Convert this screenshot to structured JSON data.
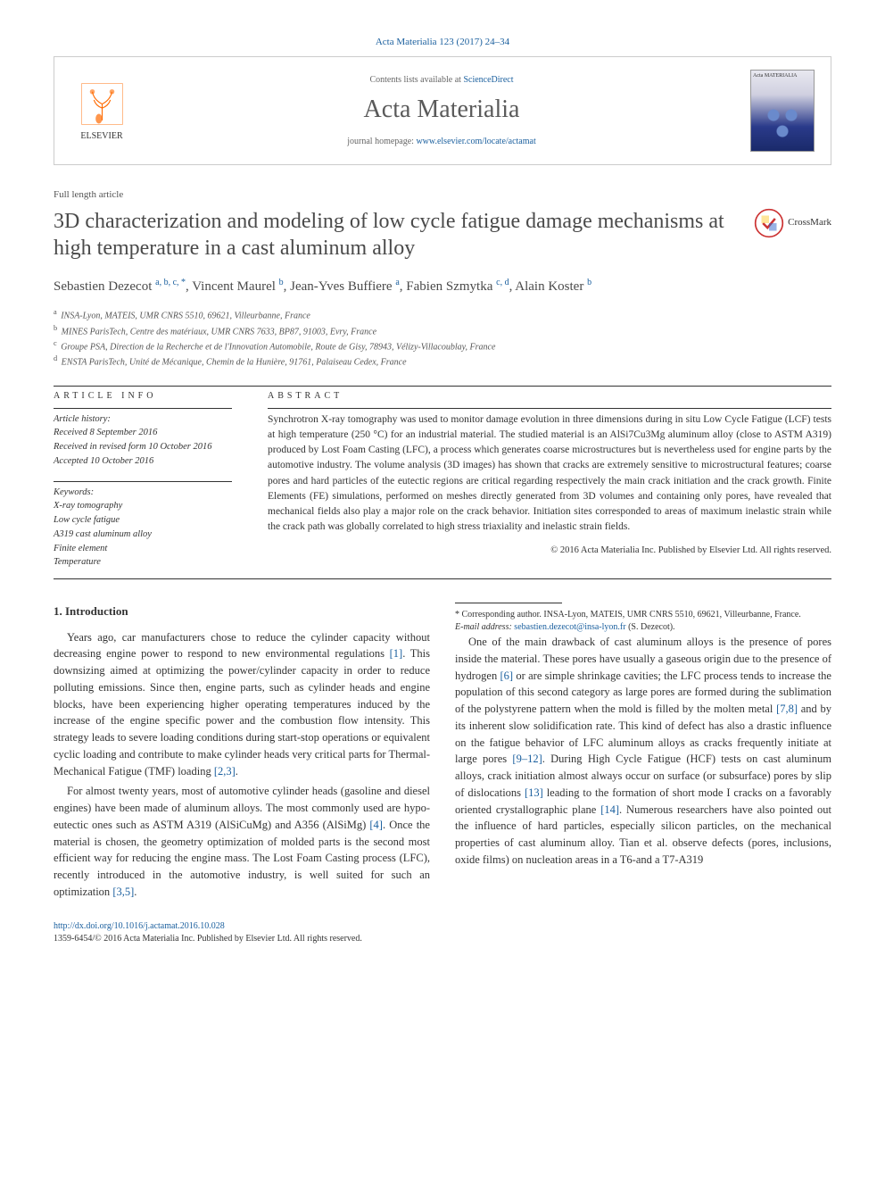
{
  "citation": "Acta Materialia 123 (2017) 24–34",
  "header": {
    "contents_prefix": "Contents lists available at ",
    "contents_link": "ScienceDirect",
    "journal": "Acta Materialia",
    "homepage_prefix": "journal homepage: ",
    "homepage_url": "www.elsevier.com/locate/actamat",
    "publisher": "ELSEVIER",
    "cover_label": "Acta MATERIALIA"
  },
  "article_type": "Full length article",
  "title": "3D characterization and modeling of low cycle fatigue damage mechanisms at high temperature in a cast aluminum alloy",
  "crossmark": "CrossMark",
  "authors_html": "Sebastien Dezecot <sup>a, b, c, *</sup>, Vincent Maurel <sup>b</sup>, Jean-Yves Buffiere <sup>a</sup>, Fabien Szmytka <sup>c, d</sup>, Alain Koster <sup>b</sup>",
  "affiliations": [
    "a INSA-Lyon, MATEIS, UMR CNRS 5510, 69621, Villeurbanne, France",
    "b MINES ParisTech, Centre des matériaux, UMR CNRS 7633, BP87, 91003, Evry, France",
    "c Groupe PSA, Direction de la Recherche et de l'Innovation Automobile, Route de Gisy, 78943, Vélizy-Villacoublay, France",
    "d ENSTA ParisTech, Unité de Mécanique, Chemin de la Hunière, 91761, Palaiseau Cedex, France"
  ],
  "section_labels": {
    "info": "ARTICLE INFO",
    "abstract": "ABSTRACT"
  },
  "history": {
    "header": "Article history:",
    "received": "Received 8 September 2016",
    "revised": "Received in revised form 10 October 2016",
    "accepted": "Accepted 10 October 2016"
  },
  "keywords": {
    "header": "Keywords:",
    "items": [
      "X-ray tomography",
      "Low cycle fatigue",
      "A319 cast aluminum alloy",
      "Finite element",
      "Temperature"
    ]
  },
  "abstract": "Synchrotron X-ray tomography was used to monitor damage evolution in three dimensions during in situ Low Cycle Fatigue (LCF) tests at high temperature (250 °C) for an industrial material. The studied material is an AlSi7Cu3Mg aluminum alloy (close to ASTM A319) produced by Lost Foam Casting (LFC), a process which generates coarse microstructures but is nevertheless used for engine parts by the automotive industry. The volume analysis (3D images) has shown that cracks are extremely sensitive to microstructural features; coarse pores and hard particles of the eutectic regions are critical regarding respectively the main crack initiation and the crack growth. Finite Elements (FE) simulations, performed on meshes directly generated from 3D volumes and containing only pores, have revealed that mechanical fields also play a major role on the crack behavior. Initiation sites corresponded to areas of maximum inelastic strain while the crack path was globally correlated to high stress triaxiality and inelastic strain fields.",
  "copyright": "© 2016 Acta Materialia Inc. Published by Elsevier Ltd. All rights reserved.",
  "body": {
    "h1": "1. Introduction",
    "p1": "Years ago, car manufacturers chose to reduce the cylinder capacity without decreasing engine power to respond to new environmental regulations [1]. This downsizing aimed at optimizing the power/cylinder capacity in order to reduce polluting emissions. Since then, engine parts, such as cylinder heads and engine blocks, have been experiencing higher operating temperatures induced by the increase of the engine specific power and the combustion flow intensity. This strategy leads to severe loading conditions during start-stop operations or equivalent cyclic loading and contribute to make cylinder heads very critical parts for Thermal-Mechanical Fatigue (TMF) loading [2,3].",
    "p2": "For almost twenty years, most of automotive cylinder heads (gasoline and diesel engines) have been made of aluminum alloys. The most commonly used are hypo-eutectic ones such as ASTM A319 (AlSiCuMg) and A356 (AlSiMg) [4]. Once the material is chosen, the geometry optimization of molded parts is the second most efficient way for reducing the engine mass. The Lost Foam Casting process (LFC), recently introduced in the automotive industry, is well suited for such an optimization [3,5].",
    "p3": "One of the main drawback of cast aluminum alloys is the presence of pores inside the material. These pores have usually a gaseous origin due to the presence of hydrogen [6] or are simple shrinkage cavities; the LFC process tends to increase the population of this second category as large pores are formed during the sublimation of the polystyrene pattern when the mold is filled by the molten metal [7,8] and by its inherent slow solidification rate. This kind of defect has also a drastic influence on the fatigue behavior of LFC aluminum alloys as cracks frequently initiate at large pores [9–12]. During High Cycle Fatigue (HCF) tests on cast aluminum alloys, crack initiation almost always occur on surface (or subsurface) pores by slip of dislocations [13] leading to the formation of short mode I cracks on a favorably oriented crystallographic plane [14]. Numerous researchers have also pointed out the influence of hard particles, especially silicon particles, on the mechanical properties of cast aluminum alloy. Tian et al. observe defects (pores, inclusions, oxide films) on nucleation areas in a T6-and a T7-A319"
  },
  "footnotes": {
    "corr": "* Corresponding author. INSA-Lyon, MATEIS, UMR CNRS 5510, 69621, Villeurbanne, France.",
    "email_label": "E-mail address: ",
    "email": "sebastien.dezecot@insa-lyon.fr",
    "email_suffix": " (S. Dezecot)."
  },
  "footer": {
    "doi": "http://dx.doi.org/10.1016/j.actamat.2016.10.028",
    "issn_line": "1359-6454/© 2016 Acta Materialia Inc. Published by Elsevier Ltd. All rights reserved."
  },
  "refs": {
    "r1": "[1]",
    "r23": "[2,3]",
    "r4": "[4]",
    "r35": "[3,5]",
    "r6": "[6]",
    "r78": "[7,8]",
    "r912": "[9–12]",
    "r13": "[13]",
    "r14": "[14]"
  },
  "colors": {
    "link": "#1a5f9e",
    "text": "#333333",
    "title": "#4a4a4a",
    "orange": "#ff6a00"
  }
}
